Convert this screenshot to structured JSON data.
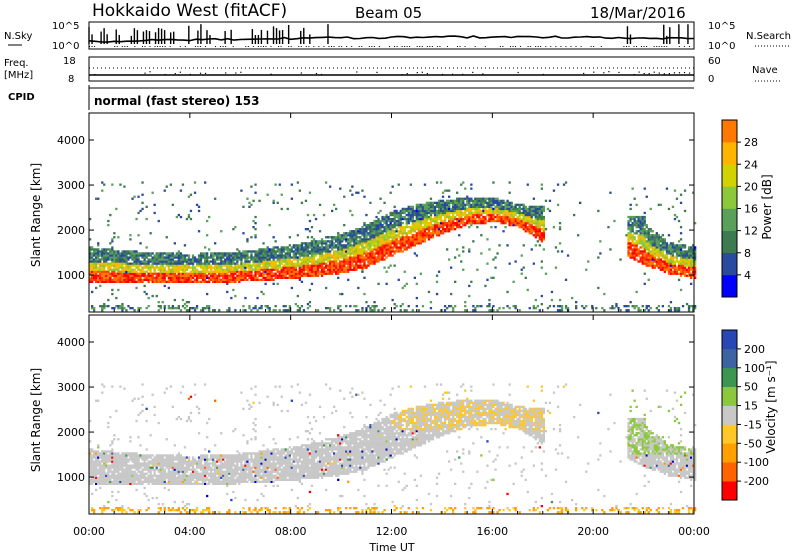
{
  "header": {
    "station": "Hokkaido West (fitACF)",
    "beam": "Beam 05",
    "date": "18/Mar/2016"
  },
  "nsky": {
    "label": "N.Sky",
    "top_tick": "10^5",
    "bottom_tick": "10^0",
    "right_top_tick": "10^5",
    "right_bottom_tick": "10^0",
    "right_label": "N.Search"
  },
  "freq": {
    "label_line1": "Freq.",
    "label_line2": "[MHz]",
    "top_tick": "18",
    "bottom_tick": "8",
    "right_top_tick": "60",
    "right_bottom_tick": "0",
    "right_label": "Nave"
  },
  "cpid": {
    "label": "CPID",
    "value": "normal (fast stereo) 153"
  },
  "power_panel": {
    "ylabel": "Slant Range [km]",
    "yticks": [
      "1000",
      "2000",
      "3000",
      "4000"
    ],
    "colorbar_label": "Power [dB]",
    "colorbar_ticks": [
      "4",
      "8",
      "12",
      "16",
      "20",
      "24",
      "28"
    ],
    "colors": [
      "#0000ff",
      "#2a4aa0",
      "#3c7a50",
      "#5aa05a",
      "#8cc83c",
      "#d2d200",
      "#ffb400",
      "#ff7800",
      "#ff3c00",
      "#ff0000"
    ]
  },
  "velocity_panel": {
    "ylabel": "Slant Range [km]",
    "yticks": [
      "1000",
      "2000",
      "3000",
      "4000"
    ],
    "colorbar_label": "Velocity [m s⁻¹]",
    "colorbar_ticks": [
      "-200",
      "-100",
      "-50",
      "-15",
      "15",
      "50",
      "100",
      "200"
    ],
    "colors": [
      "#ff0000",
      "#ff6400",
      "#ffa000",
      "#ffc828",
      "#c8c8c8",
      "#8cc83c",
      "#3c9650",
      "#3c64a0",
      "#2846b4",
      "#0000c8"
    ]
  },
  "xaxis": {
    "label": "Time UT",
    "ticks": [
      "00:00",
      "04:00",
      "08:00",
      "12:00",
      "16:00",
      "20:00",
      "00:00"
    ]
  },
  "chart_data": {
    "type": "heatmap",
    "title": "Hokkaido West (fitACF)  Beam 05  18/Mar/2016",
    "xlabel": "Time UT",
    "ylabel": "Slant Range [km]",
    "xlim": [
      0,
      24
    ],
    "ylim": [
      180,
      4600
    ],
    "echo_band_center_km": {
      "hours": [
        0,
        2,
        4,
        6,
        8,
        9,
        10,
        11,
        12,
        13,
        14,
        15,
        16,
        17,
        18,
        19,
        20,
        21,
        22,
        23,
        24
      ],
      "lower_edge_km": [
        800,
        790,
        800,
        830,
        900,
        950,
        1020,
        1150,
        1400,
        1650,
        1900,
        2100,
        2150,
        2050,
        1700,
        null,
        null,
        null,
        1200,
        1000,
        900
      ],
      "upper_edge_km": [
        1600,
        1500,
        1450,
        1500,
        1650,
        1750,
        1900,
        2100,
        2400,
        2550,
        2650,
        2700,
        2700,
        2550,
        2500,
        null,
        null,
        null,
        2100,
        1700,
        1600
      ]
    },
    "power_colorbar": {
      "label": "Power [dB]",
      "min": 0,
      "max": 32,
      "ticks": [
        4,
        8,
        12,
        16,
        20,
        24,
        28
      ]
    },
    "velocity_colorbar": {
      "label": "Velocity [m s-1]",
      "ticks": [
        -200,
        -100,
        -50,
        -15,
        15,
        50,
        100,
        200
      ]
    }
  }
}
